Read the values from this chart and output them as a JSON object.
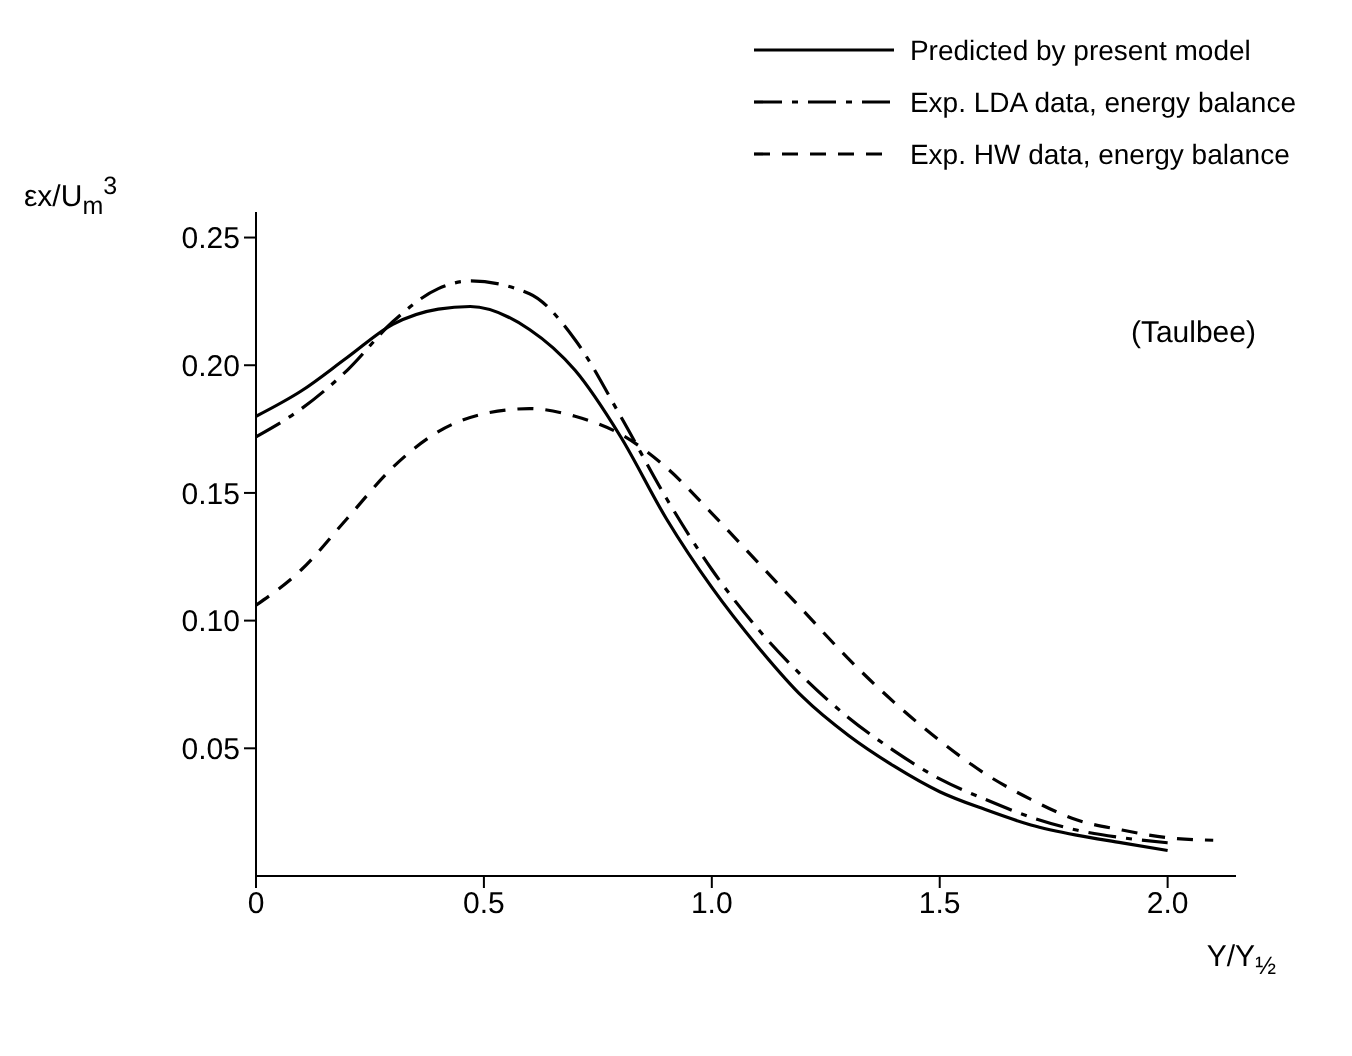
{
  "chart_data": {
    "type": "line",
    "xlabel": "Y/Y$_{½}$",
    "ylabel": "εx/U$_{m}$$^{3}$",
    "annotations": [
      "(Taulbee)"
    ],
    "x": [
      0,
      0.1,
      0.2,
      0.3,
      0.4,
      0.47,
      0.6,
      0.7,
      0.8,
      0.9,
      1.0,
      1.1,
      1.2,
      1.3,
      1.4,
      1.5,
      1.6,
      1.7,
      1.8,
      1.9,
      2.0
    ],
    "series": [
      {
        "name": "Predicted by present model",
        "color": "#000000",
        "line_style": "solid",
        "values": [
          0.18,
          0.19,
          0.203,
          0.216,
          0.222,
          0.223,
          0.214,
          0.198,
          0.172,
          0.14,
          0.113,
          0.09,
          0.07,
          0.055,
          0.043,
          0.033,
          0.026,
          0.02,
          0.016,
          0.013,
          0.01
        ]
      },
      {
        "name": "Exp. LDA data, energy balance",
        "color": "#000000",
        "line_style": "dashdot",
        "values": [
          0.172,
          0.183,
          0.198,
          0.217,
          0.23,
          0.233,
          0.228,
          0.21,
          0.18,
          0.148,
          0.12,
          0.097,
          0.078,
          0.062,
          0.049,
          0.038,
          0.03,
          0.023,
          0.018,
          0.015,
          0.013
        ]
      },
      {
        "name": "Exp. HW data, energy balance",
        "color": "#000000",
        "line_style": "dashed",
        "x": [
          0,
          0.1,
          0.2,
          0.3,
          0.4,
          0.5,
          0.6,
          0.7,
          0.8,
          0.9,
          1.0,
          1.1,
          1.2,
          1.3,
          1.4,
          1.5,
          1.6,
          1.7,
          1.8,
          1.9,
          2.0,
          2.1
        ],
        "values": [
          0.106,
          0.12,
          0.14,
          0.16,
          0.174,
          0.181,
          0.183,
          0.18,
          0.173,
          0.16,
          0.142,
          0.123,
          0.104,
          0.085,
          0.068,
          0.053,
          0.04,
          0.03,
          0.022,
          0.018,
          0.015,
          0.014
        ]
      }
    ],
    "xlim": [
      0,
      2.15
    ],
    "xticks": [
      {
        "value": 0,
        "label": "0"
      },
      0.5,
      {
        "value": 1,
        "label": "1.0"
      },
      1.5,
      {
        "value": 2,
        "label": "2.0"
      }
    ],
    "ylim": [
      0,
      0.26
    ],
    "yticks": [
      0.05,
      {
        "value": 0.1,
        "label": "0.10"
      },
      0.15,
      {
        "value": 0.2,
        "label": "0.20"
      },
      0.25
    ],
    "grid": false,
    "legend": "top right",
    "marker": "none"
  }
}
